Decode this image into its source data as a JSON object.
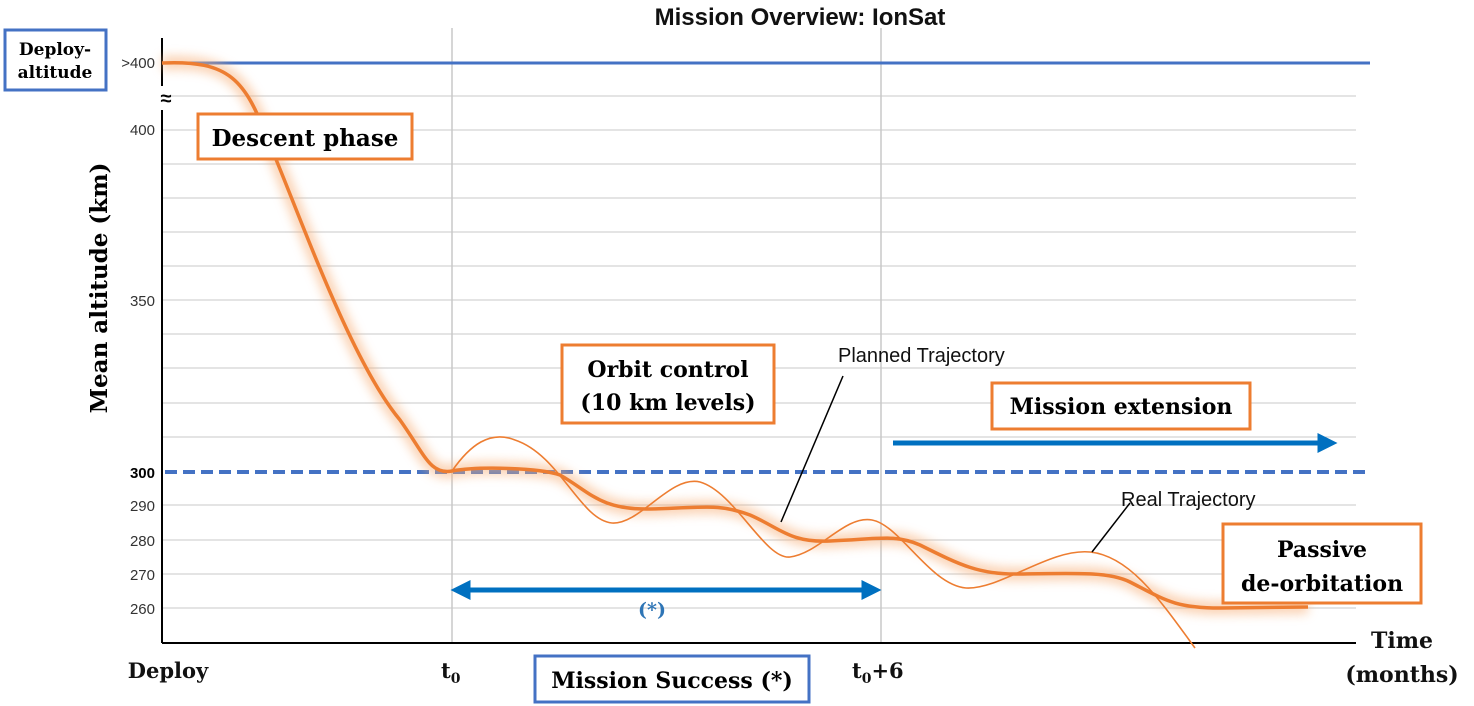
{
  "chart_data": {
    "type": "line",
    "title": "Mission Overview: IonSat",
    "ylabel": "Mean altitude (km)",
    "xlabel_line1": "Time",
    "xlabel_line2": "(months)",
    "y_ticks": [
      "260",
      "270",
      "280",
      "290",
      "300",
      "350",
      "400",
      ">400"
    ],
    "approx_symbol": "≈",
    "x_ticks": {
      "deploy": "Deploy",
      "t0_base": "t",
      "t0_sub": "0",
      "t6_base": "t",
      "t6_sub": "0",
      "t6_suffix": "+6"
    },
    "deploy_altitude_line1": "Deploy-",
    "deploy_altitude_line2": "altitude",
    "annotations": {
      "descent_phase": "Descent phase",
      "orbit_control_line1": "Orbit control",
      "orbit_control_line2": "(10 km levels)",
      "mission_extension": "Mission extension",
      "passive_line1": "Passive",
      "passive_line2": "de-orbitation",
      "planned_trajectory": "Planned Trajectory",
      "real_trajectory": "Real Trajectory",
      "success_marker": "(*)",
      "mission_success": "Mission Success (*)"
    },
    "series": [
      {
        "name": "Planned Trajectory",
        "points": [
          [
            0,
            420
          ],
          [
            0.05,
            418
          ],
          [
            0.1,
            400
          ],
          [
            0.2,
            360
          ],
          [
            0.28,
            320
          ],
          [
            0.31,
            301
          ],
          [
            0.35,
            300
          ],
          [
            0.42,
            299
          ],
          [
            0.45,
            291
          ],
          [
            0.5,
            290
          ],
          [
            0.58,
            289
          ],
          [
            0.62,
            281
          ],
          [
            0.7,
            280
          ],
          [
            0.78,
            279
          ],
          [
            0.82,
            271
          ],
          [
            0.88,
            270
          ],
          [
            0.95,
            269
          ],
          [
            1.0,
            261
          ],
          [
            1.05,
            260
          ]
        ]
      },
      {
        "name": "Real Trajectory",
        "points": [
          [
            0.31,
            300
          ],
          [
            0.35,
            310
          ],
          [
            0.42,
            298
          ],
          [
            0.45,
            286
          ],
          [
            0.5,
            294
          ],
          [
            0.55,
            297
          ],
          [
            0.62,
            276
          ],
          [
            0.7,
            286
          ],
          [
            0.78,
            266
          ],
          [
            0.85,
            276
          ],
          [
            0.9,
            272
          ],
          [
            0.95,
            250
          ]
        ]
      }
    ],
    "reference_levels": [
      {
        "label": ">400",
        "style": "solid",
        "color": "#4472c4"
      },
      {
        "label": "300",
        "style": "dashed",
        "color": "#4472c4"
      }
    ],
    "colors": {
      "trajectory": "#ed7d31",
      "reference": "#4472c4",
      "arrow": "#0070c0",
      "grid": "#c8c8c8"
    }
  }
}
